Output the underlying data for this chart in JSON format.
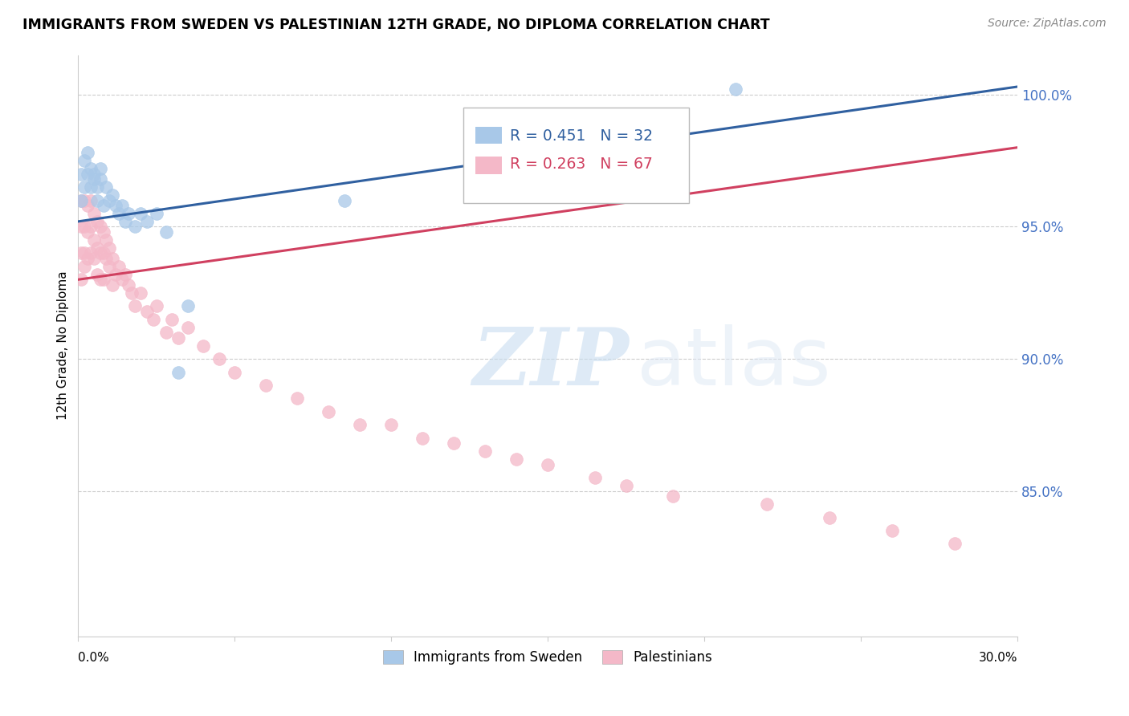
{
  "title": "IMMIGRANTS FROM SWEDEN VS PALESTINIAN 12TH GRADE, NO DIPLOMA CORRELATION CHART",
  "source": "Source: ZipAtlas.com",
  "ylabel": "12th Grade, No Diploma",
  "ytick_labels": [
    "100.0%",
    "95.0%",
    "90.0%",
    "85.0%"
  ],
  "ytick_values": [
    1.0,
    0.95,
    0.9,
    0.85
  ],
  "xlim": [
    0.0,
    0.3
  ],
  "ylim": [
    0.795,
    1.015
  ],
  "blue_R": 0.451,
  "blue_N": 32,
  "pink_R": 0.263,
  "pink_N": 67,
  "legend_label_blue": "Immigrants from Sweden",
  "legend_label_pink": "Palestinians",
  "blue_color": "#a8c8e8",
  "pink_color": "#f4b8c8",
  "blue_line_color": "#3060a0",
  "pink_line_color": "#d04060",
  "blue_scatter_x": [
    0.001,
    0.001,
    0.002,
    0.002,
    0.003,
    0.003,
    0.004,
    0.004,
    0.005,
    0.005,
    0.006,
    0.006,
    0.007,
    0.007,
    0.008,
    0.009,
    0.01,
    0.011,
    0.012,
    0.013,
    0.014,
    0.015,
    0.016,
    0.018,
    0.02,
    0.022,
    0.025,
    0.028,
    0.032,
    0.035,
    0.085,
    0.21
  ],
  "blue_scatter_y": [
    0.97,
    0.96,
    0.975,
    0.965,
    0.978,
    0.97,
    0.965,
    0.972,
    0.97,
    0.968,
    0.965,
    0.96,
    0.968,
    0.972,
    0.958,
    0.965,
    0.96,
    0.962,
    0.958,
    0.955,
    0.958,
    0.952,
    0.955,
    0.95,
    0.955,
    0.952,
    0.955,
    0.948,
    0.895,
    0.92,
    0.96,
    1.002
  ],
  "pink_scatter_x": [
    0.001,
    0.001,
    0.001,
    0.001,
    0.002,
    0.002,
    0.002,
    0.002,
    0.003,
    0.003,
    0.003,
    0.004,
    0.004,
    0.004,
    0.005,
    0.005,
    0.005,
    0.006,
    0.006,
    0.006,
    0.007,
    0.007,
    0.007,
    0.008,
    0.008,
    0.008,
    0.009,
    0.009,
    0.01,
    0.01,
    0.011,
    0.011,
    0.012,
    0.013,
    0.014,
    0.015,
    0.016,
    0.017,
    0.018,
    0.02,
    0.022,
    0.024,
    0.025,
    0.028,
    0.03,
    0.032,
    0.035,
    0.04,
    0.045,
    0.05,
    0.06,
    0.07,
    0.08,
    0.09,
    0.1,
    0.11,
    0.12,
    0.13,
    0.14,
    0.15,
    0.165,
    0.175,
    0.19,
    0.22,
    0.24,
    0.26,
    0.28
  ],
  "pink_scatter_y": [
    0.96,
    0.95,
    0.94,
    0.93,
    0.96,
    0.95,
    0.94,
    0.935,
    0.958,
    0.948,
    0.938,
    0.96,
    0.95,
    0.94,
    0.955,
    0.945,
    0.938,
    0.952,
    0.942,
    0.932,
    0.95,
    0.94,
    0.93,
    0.948,
    0.94,
    0.93,
    0.945,
    0.938,
    0.942,
    0.935,
    0.938,
    0.928,
    0.932,
    0.935,
    0.93,
    0.932,
    0.928,
    0.925,
    0.92,
    0.925,
    0.918,
    0.915,
    0.92,
    0.91,
    0.915,
    0.908,
    0.912,
    0.905,
    0.9,
    0.895,
    0.89,
    0.885,
    0.88,
    0.875,
    0.875,
    0.87,
    0.868,
    0.865,
    0.862,
    0.86,
    0.855,
    0.852,
    0.848,
    0.845,
    0.84,
    0.835,
    0.83
  ],
  "watermark_zip": "ZIP",
  "watermark_atlas": "atlas",
  "blue_trend_x0": 0.0,
  "blue_trend_x1": 0.3,
  "blue_trend_y0": 0.952,
  "blue_trend_y1": 1.003,
  "pink_trend_x0": 0.0,
  "pink_trend_x1": 0.3,
  "pink_trend_y0": 0.93,
  "pink_trend_y1": 0.98
}
